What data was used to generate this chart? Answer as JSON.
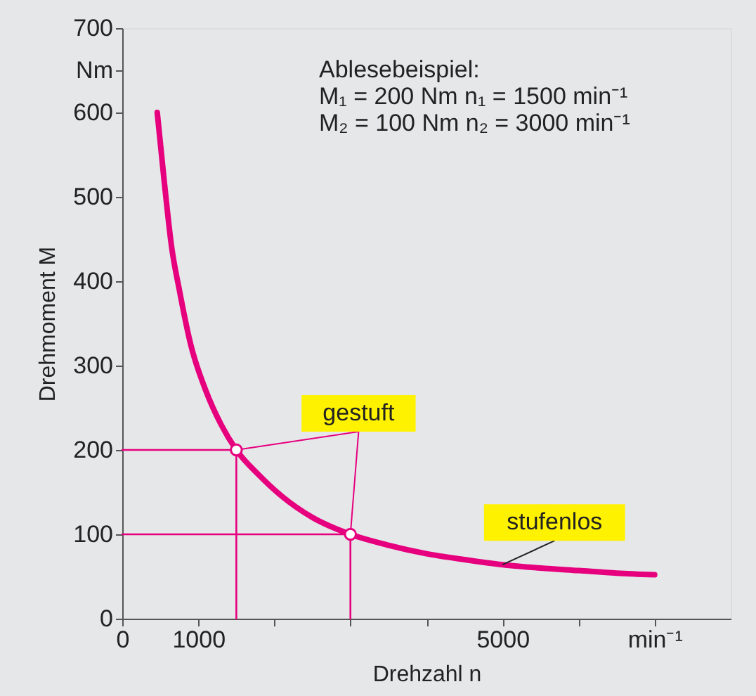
{
  "chart_data": {
    "type": "line",
    "xlabel": "Drehzahl n",
    "ylabel": "Drehmoment M",
    "xlim": [
      0,
      8000
    ],
    "xticks": [
      0,
      1000,
      {
        "value": 2000,
        "label": null
      },
      {
        "value": 3000,
        "label": null
      },
      {
        "value": 4000,
        "label": null
      },
      5000,
      {
        "value": 6000,
        "label": null
      },
      {
        "value": 7000,
        "label": "min⁻¹"
      }
    ],
    "ylim": [
      0,
      700
    ],
    "yticks": [
      0,
      100,
      200,
      300,
      400,
      500,
      600,
      {
        "value": 650,
        "label": "Nm"
      },
      700
    ],
    "grid": false,
    "legend": false,
    "series": [
      {
        "name": "stufenlos",
        "color": "#e6007e",
        "x": [
          460,
          550,
          650,
          750,
          900,
          1100,
          1300,
          1500,
          1800,
          2100,
          2500,
          3000,
          3500,
          4000,
          4500,
          5000,
          5500,
          6000,
          6500,
          7000
        ],
        "values": [
          600,
          520,
          440,
          390,
          325,
          270,
          230,
          200,
          170,
          145,
          120,
          100,
          87,
          77,
          70,
          64,
          60,
          57,
          54,
          52
        ]
      },
      {
        "color": "#e6007e",
        "x": [
          0,
          1500,
          1500
        ],
        "values": [
          200,
          200,
          0
        ]
      },
      {
        "color": "#e6007e",
        "x": [
          0,
          3000,
          3000
        ],
        "values": [
          100,
          100,
          0
        ]
      },
      {
        "name": "gestuft",
        "type": "scatter",
        "marker": "circle",
        "color": "#e6007e",
        "x": [
          1500,
          3000
        ],
        "values": [
          200,
          100
        ]
      }
    ],
    "annotations": [
      "Ablesebeispiel:",
      "M₁ = 200 Nm    n₁ = 1500 min⁻¹",
      "M₂ = 100 Nm    n₂ = 3000 min⁻¹"
    ]
  }
}
